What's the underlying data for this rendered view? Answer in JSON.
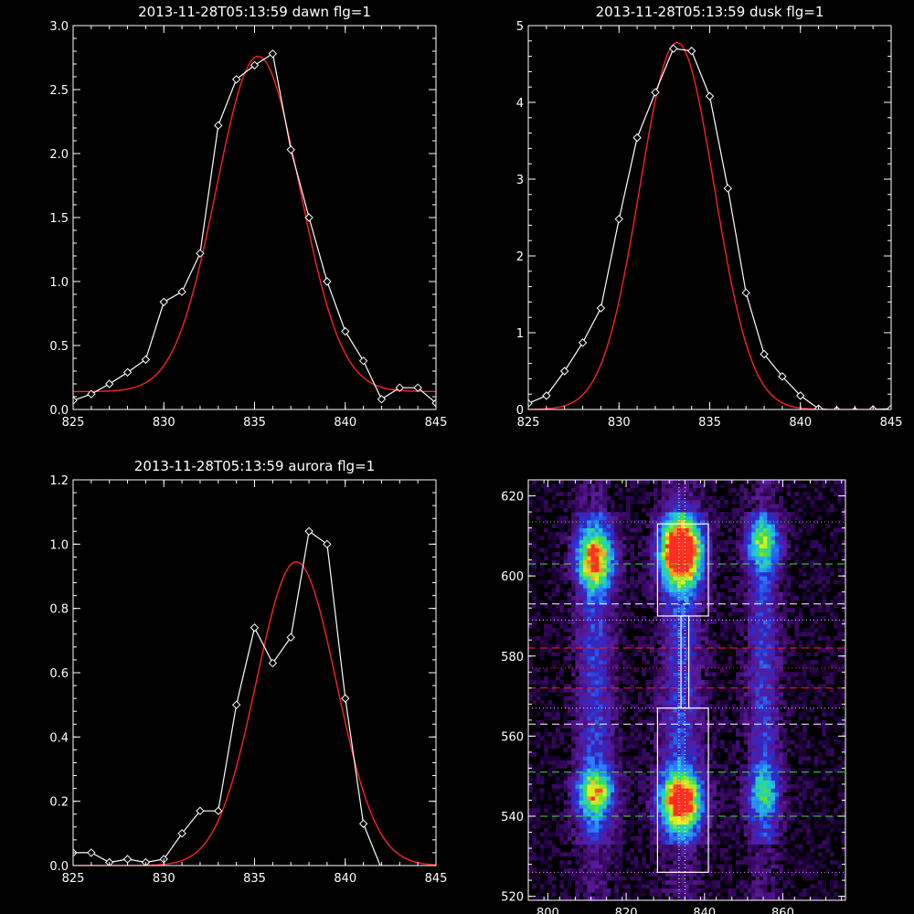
{
  "colors": {
    "background": "#000000",
    "axes": "#ffffff",
    "data_line": "#ffffff",
    "fit_line": "#ff2020"
  },
  "chart_data": [
    {
      "id": "dawn",
      "type": "line",
      "title": "2013-11-28T05:13:59 dawn flg=1",
      "xlim": [
        825,
        845
      ],
      "ylim": [
        0,
        3.0
      ],
      "xticks": [
        825,
        830,
        835,
        840,
        845
      ],
      "yticks": [
        0.0,
        0.5,
        1.0,
        1.5,
        2.0,
        2.5,
        3.0
      ],
      "ytick_labels": [
        "0.0",
        "0.5",
        "1.0",
        "1.5",
        "2.0",
        "2.5",
        "3.0"
      ],
      "data_points": {
        "x": [
          825,
          826,
          827,
          828,
          829,
          830,
          831,
          832,
          833,
          834,
          835,
          836,
          837,
          838,
          839,
          840,
          841,
          842,
          843,
          844,
          845
        ],
        "y": [
          0.07,
          0.12,
          0.2,
          0.29,
          0.39,
          0.84,
          0.92,
          1.22,
          2.22,
          2.58,
          2.69,
          2.78,
          2.03,
          1.5,
          1.0,
          0.61,
          0.38,
          0.08,
          0.17,
          0.17,
          0.05
        ]
      },
      "fit": {
        "center": 835.2,
        "sigma": 2.3,
        "amplitude": 2.62,
        "baseline": 0.14
      }
    },
    {
      "id": "dusk",
      "type": "line",
      "title": "2013-11-28T05:13:59 dusk flg=1",
      "xlim": [
        825,
        845
      ],
      "ylim": [
        0,
        5
      ],
      "xticks": [
        825,
        830,
        835,
        840,
        845
      ],
      "yticks": [
        0,
        1,
        2,
        3,
        4,
        5
      ],
      "ytick_labels": [
        "0",
        "1",
        "2",
        "3",
        "4",
        "5"
      ],
      "data_points": {
        "x": [
          825,
          826,
          827,
          828,
          829,
          830,
          831,
          832,
          833,
          834,
          835,
          836,
          837,
          838,
          839,
          840,
          841,
          842,
          843,
          844,
          845
        ],
        "y": [
          0.08,
          0.18,
          0.5,
          0.87,
          1.32,
          2.48,
          3.54,
          4.13,
          4.7,
          4.67,
          4.08,
          2.88,
          1.52,
          0.72,
          0.43,
          0.18,
          0.01,
          -0.01,
          -0.02,
          0.0,
          0.01
        ]
      },
      "fit": {
        "center": 833.2,
        "sigma": 2.05,
        "amplitude": 4.78,
        "baseline": 0.0
      }
    },
    {
      "id": "aurora",
      "type": "line",
      "title": "2013-11-28T05:13:59 aurora flg=1",
      "xlim": [
        825,
        845
      ],
      "ylim": [
        0,
        1.2
      ],
      "xticks": [
        825,
        830,
        835,
        840,
        845
      ],
      "yticks": [
        0.0,
        0.2,
        0.4,
        0.6,
        0.8,
        1.0,
        1.2
      ],
      "ytick_labels": [
        "0.0",
        "0.2",
        "0.4",
        "0.6",
        "0.8",
        "1.0",
        "1.2"
      ],
      "data_points": {
        "x": [
          825,
          826,
          827,
          828,
          829,
          830,
          831,
          832,
          833,
          834,
          835,
          836,
          837,
          838,
          839,
          840,
          841,
          842,
          843,
          844,
          845
        ],
        "y": [
          0.04,
          0.04,
          0.01,
          0.02,
          0.01,
          0.02,
          0.1,
          0.17,
          0.17,
          0.5,
          0.74,
          0.63,
          0.71,
          1.04,
          1.0,
          0.52,
          0.13,
          -0.01,
          -0.01,
          -0.01,
          -0.02
        ]
      },
      "fit": {
        "center": 837.3,
        "sigma": 2.2,
        "amplitude": 0.945,
        "baseline": 0.0
      }
    },
    {
      "id": "spectrogram",
      "type": "heatmap",
      "title": "",
      "xlim": [
        795,
        876
      ],
      "ylim": [
        519,
        624
      ],
      "xticks": [
        800,
        820,
        840,
        860
      ],
      "yticks": [
        520,
        540,
        560,
        580,
        600,
        620
      ],
      "colormap": [
        "#1a0033",
        "#3a0a66",
        "#5a1a99",
        "#2a2acc",
        "#2a80ff",
        "#20d0d0",
        "#40e040",
        "#f0f020",
        "#ff3020"
      ],
      "emission_columns": [
        {
          "x_center": 812,
          "width": 8,
          "peaks": [
            {
              "y": 604,
              "intensity": 0.7,
              "spread": 5
            },
            {
              "y": 546,
              "intensity": 0.6,
              "spread": 4
            }
          ]
        },
        {
          "x_center": 834,
          "width": 9,
          "peaks": [
            {
              "y": 606,
              "intensity": 1.0,
              "spread": 6
            },
            {
              "y": 544,
              "intensity": 0.85,
              "spread": 5
            }
          ]
        },
        {
          "x_center": 855,
          "width": 7,
          "peaks": [
            {
              "y": 608,
              "intensity": 0.45,
              "spread": 4
            },
            {
              "y": 546,
              "intensity": 0.35,
              "spread": 4
            }
          ]
        }
      ],
      "boxes": [
        {
          "x": [
            828,
            841
          ],
          "y": [
            590,
            613
          ]
        },
        {
          "x": [
            834,
            836
          ],
          "y": [
            567,
            590
          ]
        },
        {
          "x": [
            828,
            841
          ],
          "y": [
            526,
            567
          ]
        }
      ],
      "hlines": [
        {
          "y": 613.5,
          "color": "#40e040",
          "style": "dotted"
        },
        {
          "y": 603,
          "color": "#40e040",
          "style": "dashed"
        },
        {
          "y": 593,
          "color": "#ffffff",
          "style": "dashed"
        },
        {
          "y": 589,
          "color": "#d0d0ff",
          "style": "dotted"
        },
        {
          "y": 582,
          "color": "#ff2020",
          "style": "dashed"
        },
        {
          "y": 577,
          "color": "#ff2020",
          "style": "dotted"
        },
        {
          "y": 572,
          "color": "#ff2020",
          "style": "dashed"
        },
        {
          "y": 567,
          "color": "#d0d0ff",
          "style": "dotted"
        },
        {
          "y": 563,
          "color": "#ffffff",
          "style": "dashed"
        },
        {
          "y": 551,
          "color": "#40e040",
          "style": "dashed"
        },
        {
          "y": 540,
          "color": "#40e040",
          "style": "dashed"
        },
        {
          "y": 526,
          "color": "#ff80ff",
          "style": "dotted"
        }
      ],
      "vlines": [
        {
          "x": 833.5,
          "color": "#ffffff",
          "style": "dotted"
        },
        {
          "x": 835,
          "color": "#ffffff",
          "style": "dotted"
        }
      ]
    }
  ]
}
